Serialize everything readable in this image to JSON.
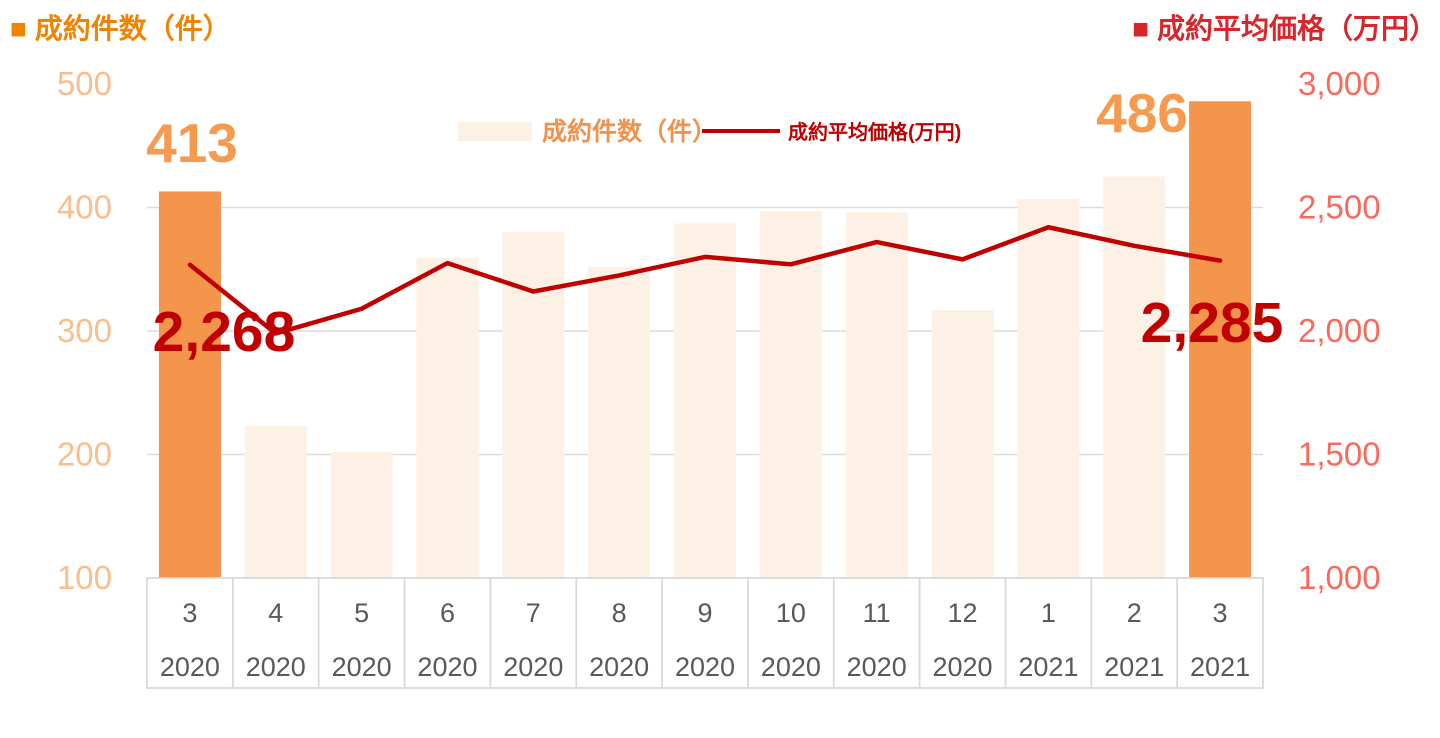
{
  "header": {
    "left_title": "■ 成約件数（件）",
    "right_title": "■ 成約平均価格（万円）"
  },
  "legend": {
    "bar_label": "成約件数（件）",
    "line_label": "成約平均価格(万円)"
  },
  "colors": {
    "title_orange": "#F08300",
    "title_red": "#D7262C",
    "bar_accent": "#F5954B",
    "bar_light": "#FDF0E5",
    "big_orange": "#F59B50",
    "legend_orange": "#F0924C",
    "line_red": "#C00000",
    "left_tick_orange": "#F9BE8C",
    "right_tick_coral": "#F9695C",
    "axis_gray": "#595959",
    "grid_gray": "#DCDCDC",
    "border_gray": "#D9D9D9"
  },
  "chart_data": {
    "type": "bar+line",
    "categories": [
      {
        "month": "3",
        "year": "2020"
      },
      {
        "month": "4",
        "year": "2020"
      },
      {
        "month": "5",
        "year": "2020"
      },
      {
        "month": "6",
        "year": "2020"
      },
      {
        "month": "7",
        "year": "2020"
      },
      {
        "month": "8",
        "year": "2020"
      },
      {
        "month": "9",
        "year": "2020"
      },
      {
        "month": "10",
        "year": "2020"
      },
      {
        "month": "11",
        "year": "2020"
      },
      {
        "month": "12",
        "year": "2020"
      },
      {
        "month": "1",
        "year": "2021"
      },
      {
        "month": "2",
        "year": "2021"
      },
      {
        "month": "3",
        "year": "2021"
      }
    ],
    "series": [
      {
        "name": "成約件数(件)",
        "type": "bar",
        "axis": "left",
        "values": [
          413,
          223,
          202,
          359,
          380,
          352,
          387,
          397,
          396,
          317,
          407,
          425,
          486
        ]
      },
      {
        "name": "成約平均価格(万円)",
        "type": "line",
        "axis": "right",
        "values": [
          2268,
          1990,
          2090,
          2275,
          2160,
          2225,
          2300,
          2270,
          2360,
          2290,
          2420,
          2345,
          2285
        ]
      }
    ],
    "highlighted_bars": [
      0,
      12
    ],
    "left_axis": {
      "min": 100,
      "max": 500,
      "step": 100,
      "ticks": [
        "500",
        "400",
        "300",
        "200",
        "100"
      ]
    },
    "right_axis": {
      "min": 1000,
      "max": 3000,
      "step": 500,
      "ticks": [
        "3,000",
        "2,500",
        "2,000",
        "1,500",
        "1,000"
      ]
    },
    "gridlines_at_left_values": [
      400,
      300,
      200
    ],
    "data_labels": {
      "first_bar": "413",
      "first_line": "2,268",
      "last_bar": "486",
      "last_line": "2,285"
    },
    "legend_position": "top-center",
    "grid": true
  }
}
